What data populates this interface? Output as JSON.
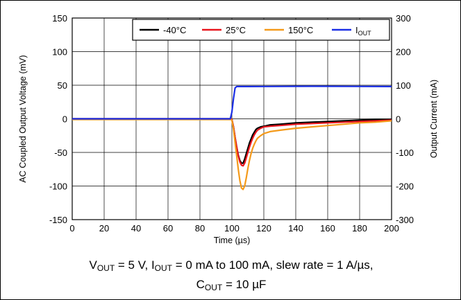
{
  "chart_data": {
    "type": "line",
    "xlabel": "Time (µs)",
    "ylabel": "AC Coupled Output Voltage (mV)",
    "y2label": "Output Current (mA)",
    "xlim": [
      0,
      200
    ],
    "ylim": [
      -150,
      150
    ],
    "y2lim": [
      -300,
      300
    ],
    "xticks": [
      0,
      20,
      40,
      60,
      80,
      100,
      120,
      140,
      160,
      180,
      200
    ],
    "yticks": [
      -150,
      -100,
      -50,
      0,
      50,
      100,
      150
    ],
    "y2ticks": [
      -300,
      -200,
      -100,
      0,
      100,
      200,
      300
    ],
    "grid": true,
    "legend_position": "top-right",
    "series": [
      {
        "name": "-40°C",
        "color": "#000000",
        "axis": "left",
        "x": [
          0,
          50,
          99.5,
          100,
          101,
          102,
          103,
          104,
          105,
          106,
          107,
          108,
          109,
          110,
          111,
          112,
          113,
          114,
          115,
          116,
          118,
          120,
          124,
          130,
          140,
          150,
          160,
          170,
          180,
          190,
          200
        ],
        "y": [
          0,
          0,
          0,
          -1,
          -12,
          -28,
          -42,
          -54,
          -62,
          -66,
          -66,
          -60,
          -52,
          -44,
          -36,
          -30,
          -24,
          -20,
          -16,
          -14,
          -12,
          -11,
          -9,
          -8,
          -6,
          -5,
          -4,
          -3,
          -2,
          -1,
          -1
        ]
      },
      {
        "name": "25°C",
        "color": "#e8141c",
        "axis": "left",
        "x": [
          0,
          50,
          99.5,
          100,
          101,
          102,
          103,
          104,
          105,
          106,
          107,
          108,
          109,
          110,
          111,
          112,
          113,
          114,
          115,
          116,
          118,
          120,
          124,
          130,
          140,
          150,
          160,
          170,
          180,
          190,
          200
        ],
        "y": [
          0,
          0,
          0,
          -1,
          -12,
          -28,
          -42,
          -55,
          -64,
          -69,
          -70,
          -66,
          -58,
          -50,
          -42,
          -35,
          -29,
          -24,
          -20,
          -17,
          -14,
          -12,
          -11,
          -10,
          -8,
          -7,
          -6,
          -5,
          -4,
          -3,
          -2
        ]
      },
      {
        "name": "150°C",
        "color": "#f49a1a",
        "axis": "left",
        "x": [
          0,
          50,
          99.5,
          100,
          101,
          102,
          103,
          104,
          105,
          106,
          107,
          108,
          109,
          110,
          111,
          112,
          113,
          114,
          115,
          116,
          118,
          120,
          124,
          130,
          140,
          150,
          160,
          170,
          180,
          190,
          200
        ],
        "y": [
          -1,
          -1,
          -1,
          -2,
          -15,
          -35,
          -55,
          -75,
          -92,
          -103,
          -105,
          -100,
          -88,
          -74,
          -62,
          -52,
          -44,
          -38,
          -33,
          -29,
          -25,
          -22,
          -19,
          -17,
          -14,
          -12,
          -10,
          -8,
          -6,
          -5,
          -3
        ]
      },
      {
        "name": "I_OUT",
        "color": "#1a2ee6",
        "axis": "right",
        "x": [
          0,
          50,
          99,
          100,
          101,
          102,
          103,
          110,
          150,
          200
        ],
        "y": [
          0,
          0,
          0,
          20,
          60,
          92,
          96,
          96,
          97,
          96
        ]
      }
    ]
  },
  "legend": [
    {
      "text": "-40°C",
      "sub": "",
      "color": "#000000"
    },
    {
      "text": "25°C",
      "sub": "",
      "color": "#e8141c"
    },
    {
      "text": "150°C",
      "sub": "",
      "color": "#f49a1a"
    },
    {
      "text": "I",
      "sub": "OUT",
      "color": "#1a2ee6"
    }
  ],
  "caption": {
    "line1": {
      "v": "V",
      "v_sub": "OUT",
      "mid1": " = 5 V, I",
      "i_sub": "OUT",
      "rest": " = 0 mA to 100 mA, slew rate = 1 A/µs,"
    },
    "line2": {
      "c": "C",
      "c_sub": "OUT",
      "rest": " = 10 µF"
    }
  }
}
